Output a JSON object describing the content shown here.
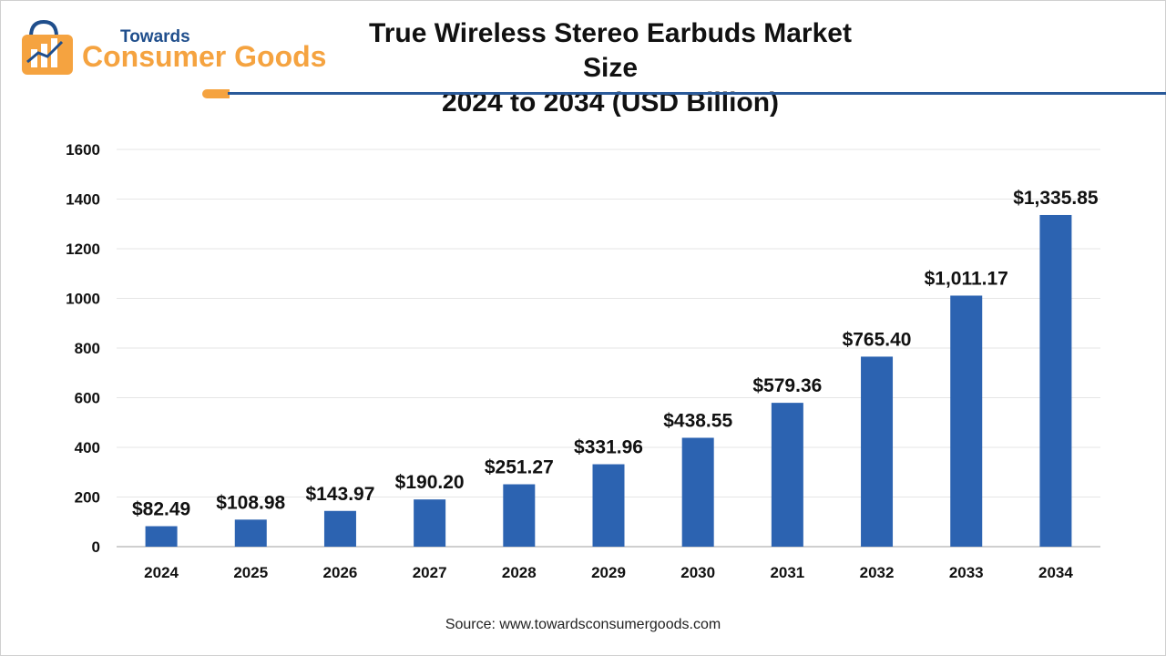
{
  "brand": {
    "top": "Towards",
    "main": "Consumer Goods"
  },
  "chart_data": {
    "type": "bar",
    "title_line1": "True Wireless Stereo Earbuds Market Size",
    "title_line2": "2024 to 2034 (USD Billion)",
    "categories": [
      "2024",
      "2025",
      "2026",
      "2027",
      "2028",
      "2029",
      "2030",
      "2031",
      "2032",
      "2033",
      "2034"
    ],
    "values": [
      82.49,
      108.98,
      143.97,
      190.2,
      251.27,
      331.96,
      438.55,
      579.36,
      765.4,
      1011.17,
      1335.85
    ],
    "data_labels": [
      "$82.49",
      "$108.98",
      "$143.97",
      "$190.20",
      "$251.27",
      "$331.96",
      "$438.55",
      "$579.36",
      "$765.40",
      "$1,011.17",
      "$1,335.85"
    ],
    "ylim": [
      0,
      1600
    ],
    "yticks": [
      0,
      200,
      400,
      600,
      800,
      1000,
      1200,
      1400,
      1600
    ],
    "bar_color": "#2c63b1",
    "grid": true,
    "legend": false
  },
  "source": "Source: www.towardsconsumergoods.com",
  "colors": {
    "accent": "#f5a340",
    "brand_blue": "#1f4e8c"
  }
}
